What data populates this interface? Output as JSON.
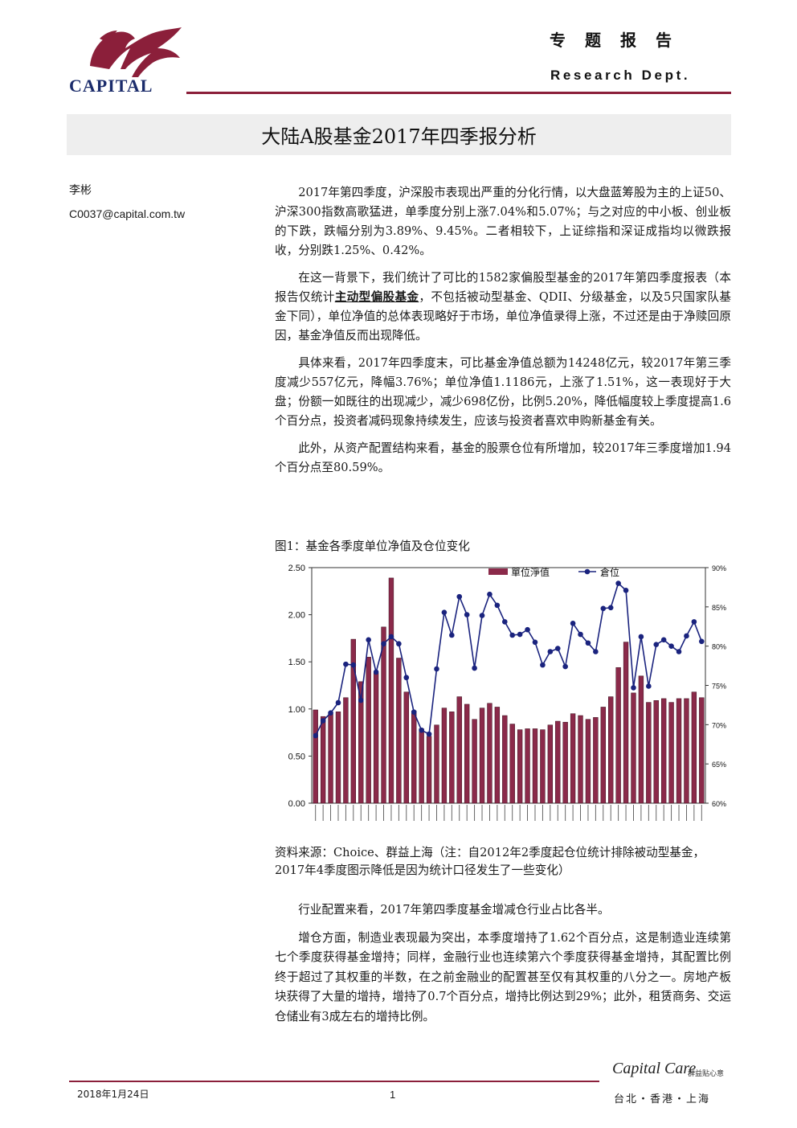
{
  "header": {
    "logo_text": "CAPITAL",
    "report_type": "专题报告",
    "dept": "Research Dept.",
    "brand_color": "#8b1f3a"
  },
  "title": "大陆A股基金2017年四季报分析",
  "author": {
    "name": "李彬",
    "email": "C0037@capital.com.tw"
  },
  "body": {
    "p1": "2017年第四季度，沪深股市表现出严重的分化行情，以大盘蓝筹股为主的上证50、沪深300指数高歌猛进，单季度分别上涨7.04%和5.07%；与之对应的中小板、创业板的下跌，跌幅分别为3.89%、9.45%。二者相较下，上证综指和深证成指均以微跌报收，分别跌1.25%、0.42%。",
    "p2_a": "在这一背景下，我们统计了可比的1582家偏股型基金的2017年第四季度报表（本报告仅统计",
    "p2_em": "主动型偏股基金",
    "p2_b": "，不包括被动型基金、QDII、分级基金，以及5只国家队基金下同），单位净值的总体表现略好于市场，单位净值录得上涨，不过还是由于净赎回原因，基金净值反而出现降低。",
    "p3": "具体来看，2017年四季度末，可比基金净值总额为14248亿元，较2017年第三季度减少557亿元，降幅3.76%；单位净值1.1186元，上涨了1.51%，这一表现好于大盘；份额一如既往的出现减少，减少698亿份，比例5.20%，降低幅度较上季度提高1.6个百分点，投资者减码现象持续发生，应该与投资者喜欢申购新基金有关。",
    "p4": "此外，从资产配置结构来看，基金的股票仓位有所增加，较2017年三季度增加1.94个百分点至80.59%。"
  },
  "figure": {
    "caption": "图1：基金各季度单位净值及仓位变化",
    "source": "资料来源：Choice、群益上海（注：自2012年2季度起仓位统计排除被动型基金，2017年4季度图示降低是因为统计口径发生了一些变化）"
  },
  "chart_data": {
    "type": "bar+line",
    "legend": [
      "單位淨值",
      "倉位"
    ],
    "legend_position": "top",
    "y_left": {
      "min": 0,
      "max": 2.5,
      "ticks": [
        "0.00",
        "0.50",
        "1.00",
        "1.50",
        "2.00",
        "2.50"
      ]
    },
    "y_right": {
      "min": 60,
      "max": 90,
      "ticks": [
        "60%",
        "65%",
        "70%",
        "75%",
        "80%",
        "85%",
        "90%"
      ]
    },
    "series": [
      {
        "name": "單位淨值",
        "axis": "left",
        "color": "#8b2a4a",
        "values": [
          0.99,
          0.92,
          0.95,
          0.97,
          1.12,
          1.74,
          1.29,
          1.55,
          1.38,
          1.87,
          2.39,
          1.54,
          1.18,
          0.98,
          0.79,
          0.71,
          0.83,
          1.01,
          0.97,
          1.13,
          1.05,
          0.89,
          1.01,
          1.06,
          1.02,
          0.93,
          0.84,
          0.78,
          0.79,
          0.79,
          0.78,
          0.83,
          0.87,
          0.86,
          0.95,
          0.93,
          0.89,
          0.91,
          1.02,
          1.13,
          1.44,
          1.71,
          1.17,
          1.35,
          1.07,
          1.09,
          1.11,
          1.07,
          1.11,
          1.11,
          1.18,
          1.12
        ]
      },
      {
        "name": "倉位",
        "axis": "right",
        "color": "#1a237e",
        "values": [
          68.6,
          70.5,
          71.5,
          72.8,
          77.7,
          77.6,
          73.1,
          80.8,
          76.7,
          80.3,
          81.2,
          80.3,
          76.0,
          71.6,
          69.3,
          68.8,
          77.1,
          84.3,
          81.4,
          86.3,
          84.0,
          77.2,
          83.9,
          86.6,
          85.2,
          83.1,
          81.4,
          81.5,
          82.1,
          80.5,
          77.6,
          79.3,
          79.7,
          77.4,
          82.9,
          81.5,
          80.4,
          79.3,
          84.8,
          84.9,
          88.0,
          87.1,
          74.7,
          81.2,
          74.9,
          80.2,
          80.8,
          80.0,
          79.3,
          81.3,
          83.1,
          80.6
        ]
      }
    ],
    "x_label_count": 52
  },
  "body2": {
    "p1": "行业配置来看，2017年第四季度基金增减仓行业占比各半。",
    "p2": "增仓方面，制造业表现最为突出，本季度增持了1.62个百分点，这是制造业连续第七个季度获得基金增持；同样，金融行业也连续第六个季度获得基金增持，其配置比例终于超过了其权重的半数，在之前金融业的配置甚至仅有其权重的八分之一。房地产板块获得了大量的增持，增持了0.7个百分点，增持比例达到29%；此外，租赁商务、交运仓储业有3成左右的增持比例。"
  },
  "footer": {
    "date": "2018年1月24日",
    "page": "1",
    "brand": "Capital Care",
    "brand_cn": "群益贴心意",
    "cities": "台北・香港・上海"
  }
}
